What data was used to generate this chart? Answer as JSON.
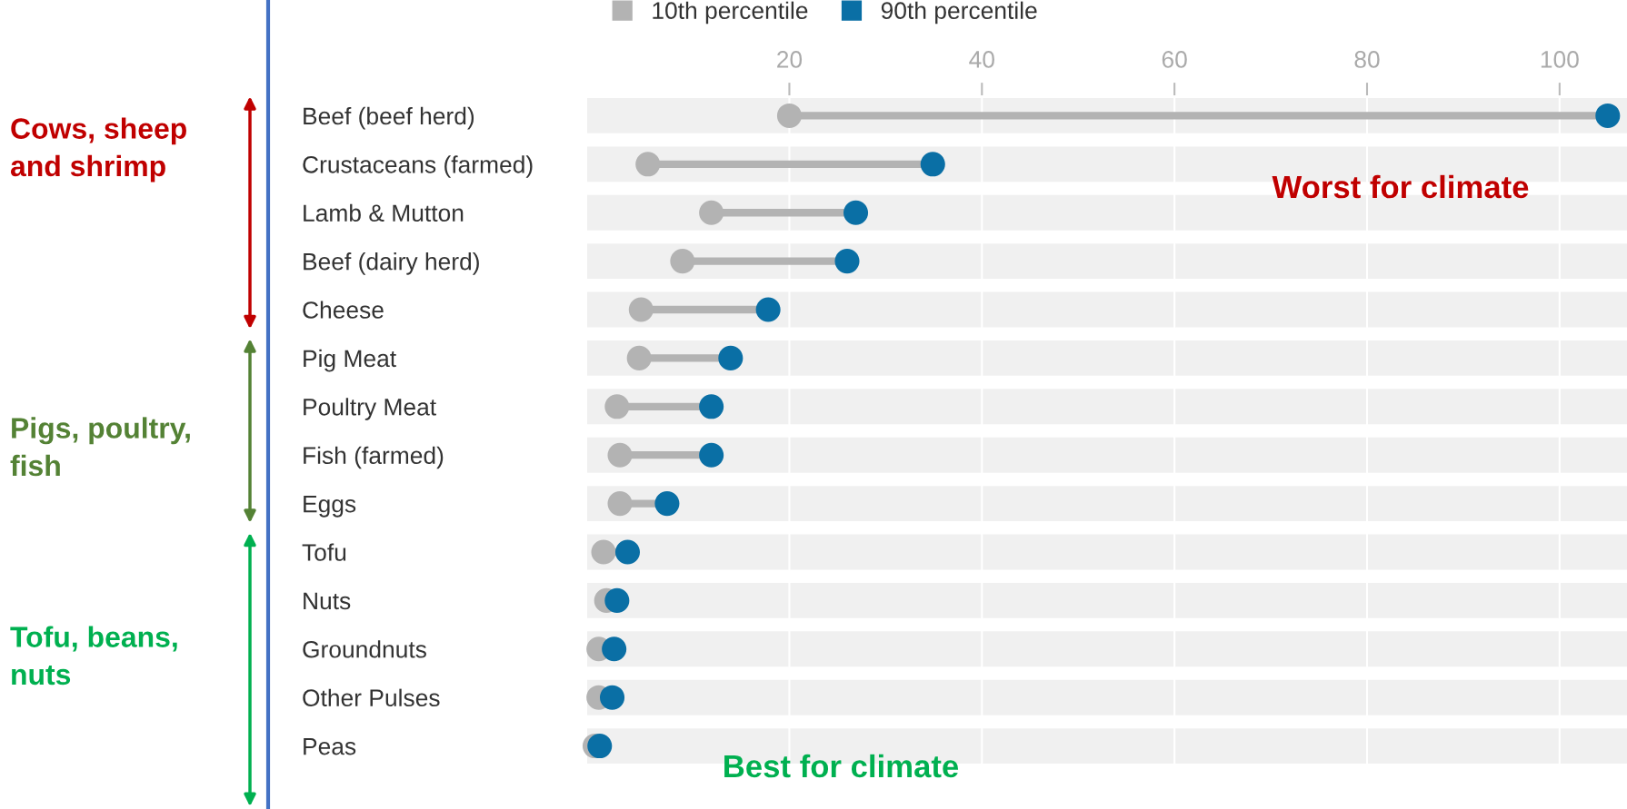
{
  "chart_data": {
    "type": "scatter",
    "categories": [
      "Beef (beef herd)",
      "Crustaceans (farmed)",
      "Lamb & Mutton",
      "Beef (dairy herd)",
      "Cheese",
      "Pig Meat",
      "Poultry Meat",
      "Fish (farmed)",
      "Eggs",
      "Tofu",
      "Nuts",
      "Groundnuts",
      "Other Pulses",
      "Peas"
    ],
    "series": [
      {
        "name": "10th percentile",
        "color": "#b3b3b3",
        "values": [
          20,
          5.3,
          11.9,
          8.9,
          4.6,
          4.4,
          2.1,
          2.4,
          2.4,
          0.7,
          1.0,
          0.2,
          0.2,
          -0.2
        ]
      },
      {
        "name": "90th percentile",
        "color": "#0a6fa5",
        "values": [
          105,
          34.9,
          26.9,
          26.0,
          17.8,
          13.9,
          11.9,
          11.9,
          7.3,
          3.2,
          2.1,
          1.8,
          1.6,
          0.3
        ]
      }
    ],
    "xlim": [
      -1,
      107
    ],
    "xticks": [
      20,
      40,
      60,
      80,
      100
    ],
    "orientation": "horizontal",
    "grid": true,
    "legend": "top left",
    "marker": "circle",
    "annotations": [
      "Cows, sheep\nand shrimp",
      "Pigs, poultry,\nfish",
      "Tofu, beans,\nnuts",
      "Worst for climate",
      "Best for climate"
    ]
  }
}
